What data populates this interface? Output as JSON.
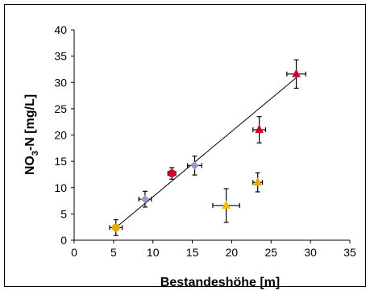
{
  "chart_data": {
    "type": "scatter",
    "xlabel": "Bestandeshöhe [m]",
    "ylabel": {
      "main": "NO",
      "sub": "3",
      "rest": "-N [mg/L]"
    },
    "xlim": [
      0,
      35
    ],
    "ylim": [
      0,
      40
    ],
    "xticks": [
      0,
      5,
      10,
      15,
      20,
      25,
      30,
      35
    ],
    "yticks": [
      0,
      5,
      10,
      15,
      20,
      25,
      30,
      35,
      40
    ],
    "grid": false,
    "points": [
      {
        "x": 5.3,
        "y": 2.4,
        "xerr": 0.8,
        "yerr": 1.5,
        "marker": "circle",
        "color": "#E8A800"
      },
      {
        "x": 9.0,
        "y": 7.8,
        "xerr": 0.8,
        "yerr": 1.5,
        "marker": "diamond",
        "color": "#9999CC"
      },
      {
        "x": 12.4,
        "y": 12.7,
        "xerr": 0.5,
        "yerr": 1.1,
        "marker": "circle",
        "color": "#CC0033"
      },
      {
        "x": 15.3,
        "y": 14.2,
        "xerr": 0.9,
        "yerr": 1.8,
        "marker": "diamond",
        "color": "#9999CC"
      },
      {
        "x": 19.3,
        "y": 6.6,
        "xerr": 1.7,
        "yerr": 3.2,
        "marker": "triangle",
        "color": "#E8C000"
      },
      {
        "x": 23.3,
        "y": 11.0,
        "xerr": 0.6,
        "yerr": 1.8,
        "marker": "triangle",
        "color": "#E8A800"
      },
      {
        "x": 23.5,
        "y": 21.0,
        "xerr": 0.8,
        "yerr": 2.5,
        "marker": "triangle",
        "color": "#CC0033"
      },
      {
        "x": 28.2,
        "y": 31.6,
        "xerr": 1.2,
        "yerr": 2.7,
        "marker": "triangle",
        "color": "#CC0033"
      }
    ],
    "trendline": {
      "x": [
        5.3,
        28.2
      ],
      "y": [
        2.4,
        30.9
      ]
    }
  }
}
